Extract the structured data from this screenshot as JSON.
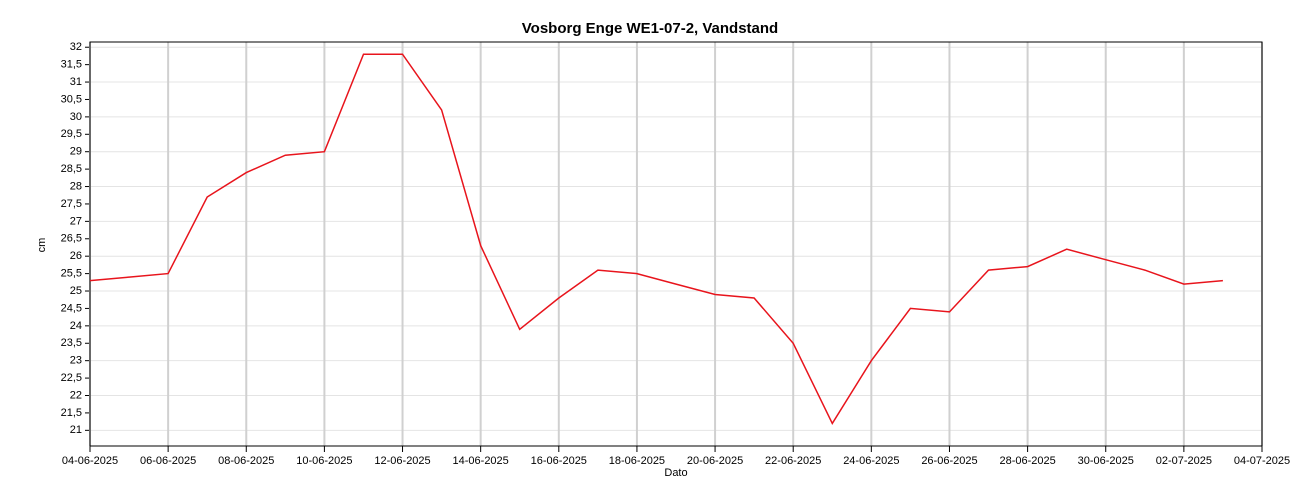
{
  "chart_data": {
    "type": "line",
    "title": "Vosborg Enge WE1-07-2, Vandstand",
    "x_label": "Dato",
    "y_label": "cm",
    "x": [
      "04-06-2025",
      "05-06-2025",
      "06-06-2025",
      "07-06-2025",
      "08-06-2025",
      "09-06-2025",
      "10-06-2025",
      "11-06-2025",
      "12-06-2025",
      "13-06-2025",
      "14-06-2025",
      "15-06-2025",
      "16-06-2025",
      "17-06-2025",
      "18-06-2025",
      "19-06-2025",
      "20-06-2025",
      "21-06-2025",
      "22-06-2025",
      "23-06-2025",
      "24-06-2025",
      "25-06-2025",
      "26-06-2025",
      "27-06-2025",
      "28-06-2025",
      "29-06-2025",
      "30-06-2025",
      "01-07-2025",
      "02-07-2025",
      "03-07-2025"
    ],
    "series": [
      {
        "color": "#e8141c",
        "values": [
          25.3,
          25.4,
          25.5,
          27.7,
          28.4,
          28.9,
          29.0,
          31.8,
          31.8,
          30.2,
          26.3,
          23.9,
          24.8,
          25.6,
          25.5,
          25.2,
          24.9,
          24.8,
          23.5,
          21.2,
          23.0,
          24.5,
          24.4,
          25.6,
          25.7,
          26.2,
          25.9,
          25.6,
          25.2,
          25.3
        ]
      }
    ],
    "xlim": [
      "04-06-2025",
      "04-07-2025"
    ],
    "xticks": [
      "04-06-2025",
      "06-06-2025",
      "08-06-2025",
      "10-06-2025",
      "12-06-2025",
      "14-06-2025",
      "16-06-2025",
      "18-06-2025",
      "20-06-2025",
      "22-06-2025",
      "24-06-2025",
      "26-06-2025",
      "28-06-2025",
      "30-06-2025",
      "02-07-2025",
      "04-07-2025"
    ],
    "ylim": [
      20.55,
      32.15
    ],
    "yticks": [
      21,
      {
        "value": 21.5,
        "label": "21,5"
      },
      22,
      {
        "value": 22.5,
        "label": "22,5"
      },
      23,
      {
        "value": 23.5,
        "label": "23,5"
      },
      24,
      {
        "value": 24.5,
        "label": "24,5"
      },
      25,
      {
        "value": 25.5,
        "label": "25,5"
      },
      26,
      {
        "value": 26.5,
        "label": "26,5"
      },
      27,
      {
        "value": 27.5,
        "label": "27,5"
      },
      28,
      {
        "value": 28.5,
        "label": "28,5"
      },
      29,
      {
        "value": 29.5,
        "label": "29,5"
      },
      30,
      {
        "value": 30.5,
        "label": "30,5"
      },
      31,
      {
        "value": 31.5,
        "label": "31,5"
      },
      32
    ],
    "grid": true
  }
}
